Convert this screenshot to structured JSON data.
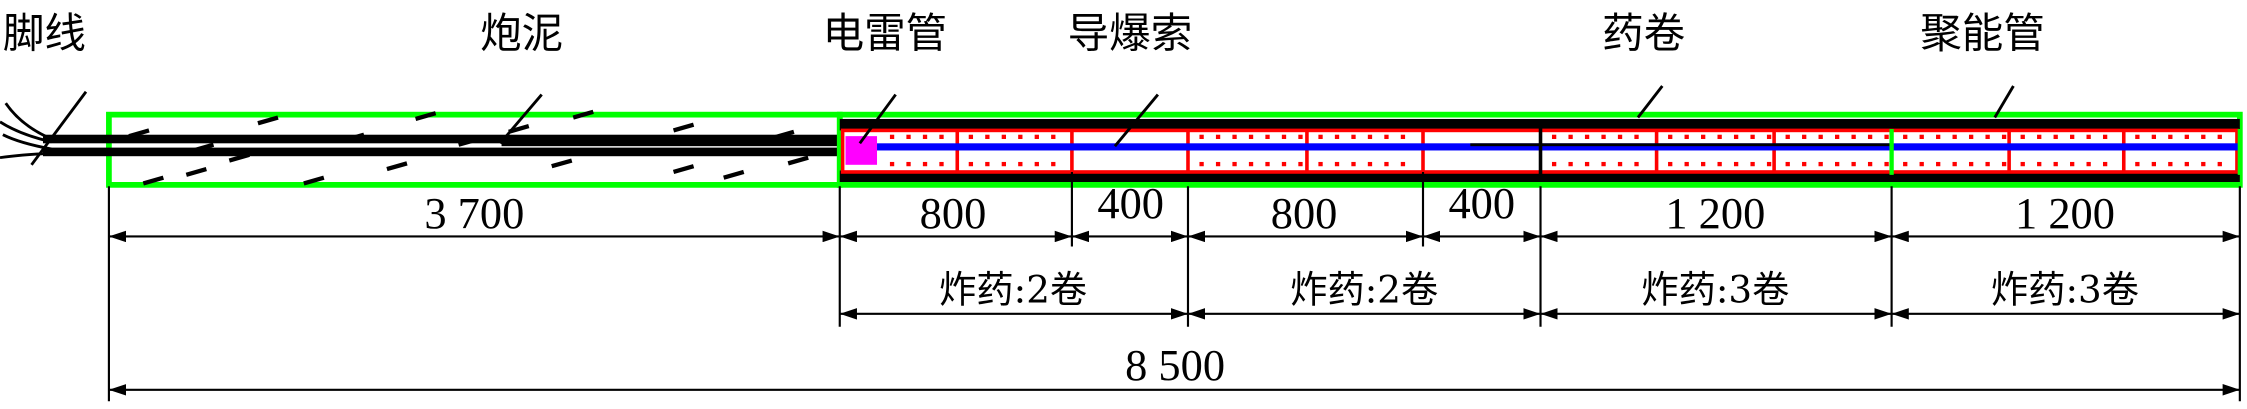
{
  "labels": {
    "leg_wire": "脚线",
    "stemming": "炮泥",
    "detonator": "电雷管",
    "detonating_cord": "导爆索",
    "cartridge": "药卷",
    "shaped_tube": "聚能管"
  },
  "dimensions": {
    "stemming_length": "3 700",
    "seg1_charge": "800",
    "seg1_gap": "400",
    "seg2_charge": "800",
    "seg2_gap": "400",
    "seg3": "1 200",
    "seg4": "1 200",
    "group1": "炸药:2卷",
    "group2": "炸药:2卷",
    "group3": "炸药:3卷",
    "group4": "炸药:3卷",
    "total": "8 500"
  },
  "colors": {
    "stemming_outline": "#00ff00",
    "cartridge_outline": "#ff0000",
    "cord": "#0000ff",
    "detonator": "#ff00ff"
  }
}
